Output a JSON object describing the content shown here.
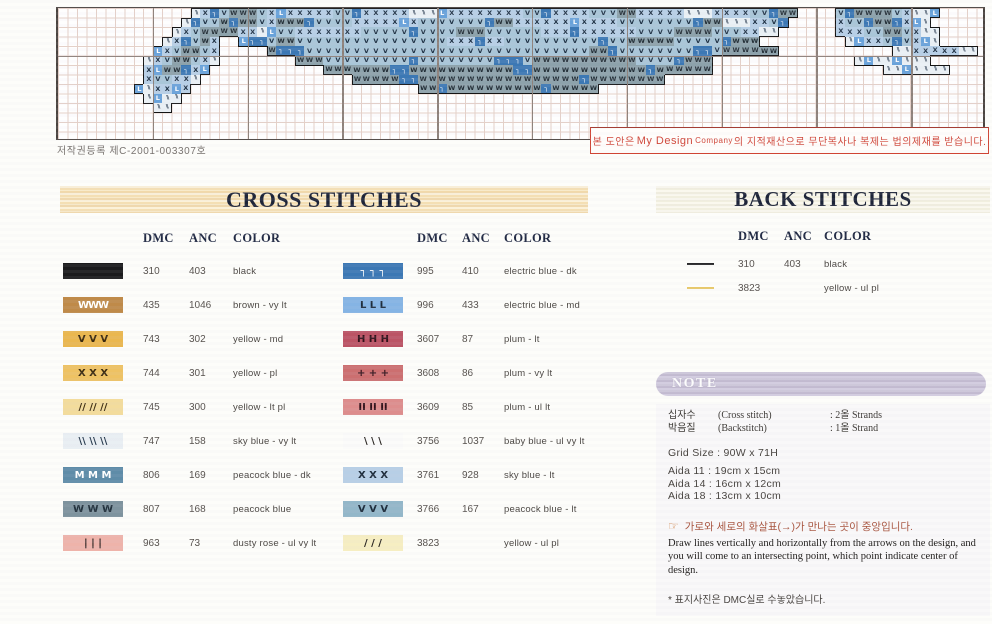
{
  "pattern": {
    "warning": {
      "pre": "본 도안은 ",
      "brand": "My Design",
      "small": "Company",
      "post": "의 지적재산으로 무단복사나 복제는 법의제재를 받습니다."
    },
    "copyright_registration": "저작권등록 제C-2001-003307호",
    "cell_types": {
      "a": {
        "bg": "#eaf0f5",
        "fg": "#2a3c50",
        "sym": "\\\\",
        "pair": true
      },
      "x": {
        "bg": "#b7cfe6",
        "fg": "#1d2f42",
        "sym": "X",
        "pair": false
      },
      "v": {
        "bg": "#a9c6d8",
        "fg": "#1d2f42",
        "sym": "V",
        "pair": false
      },
      "w": {
        "bg": "#8da2ab",
        "fg": "#232e36",
        "sym": "W",
        "pair": false
      },
      "n": {
        "bg": "#3c78b4",
        "fg": "#ffffff",
        "sym": "┐",
        "pair": false
      },
      "l": {
        "bg": "#68a2da",
        "fg": "#ffffff",
        "sym": "L",
        "pair": false
      }
    },
    "rows": [
      "..............axnvwwwvxlxxxxxvvnxxxxxaaalxxxxxxxxvvnxxxxvvvwwxxxxxaaaxxxxvvnww....vnwwwwvxaal",
      ".............anvvwnwwvxwwwnvvvvxxxxxlxvvvvvvvnwwxxxxxxlxxxxvvvvvvvvnwwaaaxxvn.....xvvnwwnxla",
      "............axvwwwwxxalvvxxxxxxxvvvvvnvvvvwwwvvvvvvxxxnxxxxxxvvvvwwwwvvvxxaa......xxxvvwwvxaa",
      "...........axnvwx..lnnvwwvvvvvvvvvvvvvvvvxxxnxxvvvvvvvvvvnvvwwwwwvvvvvnwww.........alxxvnvxla",
      "..........lxvwwvx.....wnnnvvvvvvvvvvvvvvvvvvvvvvvvvvvvvvwwnvvvvvvvvnnvwwwwww............aaxxxxxaa",
      ".........axvwwvxa........wwwvvvvvvvvvnvvvvvvvvnnnvwwwwwwwwwwwvvvvnwww...............alaalaaa",
      ".........xlwwnxl............wwwwwwwnnwwwwwwwwwwwnnwwwwwwwwwwwwnwwwwww..................aalaaaa",
      ".........xvvxxa................wwwwwnnwwwwwwwwwwwwwwwwwnwwwwwwww",
      "........laxxlx........................wwnwwwwwwwwwwnwwwww",
      ".........alaa",
      "..........aa",
      "",
      "",
      ""
    ]
  },
  "cross_stitches": {
    "title": "CROSS STITCHES",
    "headers": [
      "DMC",
      "ANC",
      "COLOR"
    ],
    "left_rows": [
      {
        "sym": "",
        "bg": "#1b1b1d",
        "fg": "#1b1b1d",
        "dmc": "310",
        "anc": "403",
        "color": "black"
      },
      {
        "sym": "WWW",
        "bg": "#bf8a49",
        "fg": "#ffffff",
        "dmc": "435",
        "anc": "1046",
        "color": "brown - vy lt"
      },
      {
        "sym": "V V V",
        "bg": "#eab74f",
        "fg": "#3a2a10",
        "dmc": "743",
        "anc": "302",
        "color": "yellow - md"
      },
      {
        "sym": "X X X",
        "bg": "#eec263",
        "fg": "#3a2a10",
        "dmc": "744",
        "anc": "301",
        "color": "yellow - pl"
      },
      {
        "sym": "// // //",
        "bg": "#f3dc9c",
        "fg": "#3a2a10",
        "dmc": "745",
        "anc": "300",
        "color": "yellow - lt pl"
      },
      {
        "sym": "\\\\ \\\\ \\\\",
        "bg": "#e9eff3",
        "fg": "#23364a",
        "dmc": "747",
        "anc": "158",
        "color": "sky blue - vy lt"
      },
      {
        "sym": "M M M",
        "bg": "#5e8ca8",
        "fg": "#ffffff",
        "dmc": "806",
        "anc": "169",
        "color": "peacock blue - dk"
      },
      {
        "sym": "W W W",
        "bg": "#7e939e",
        "fg": "#22313c",
        "dmc": "807",
        "anc": "168",
        "color": "peacock blue"
      },
      {
        "sym": "| | |",
        "bg": "#eeb3aa",
        "fg": "#2a2220",
        "dmc": "963",
        "anc": "73",
        "color": "dusty rose - ul vy lt"
      }
    ],
    "right_rows": [
      {
        "sym": "┐ ┐ ┐",
        "bg": "#3c78b4",
        "fg": "#ffffff",
        "dmc": "995",
        "anc": "410",
        "color": "electric blue - dk"
      },
      {
        "sym": "L L L",
        "bg": "#85b4e4",
        "fg": "#1c2b3a",
        "dmc": "996",
        "anc": "433",
        "color": "electric blue - md"
      },
      {
        "sym": "H H H",
        "bg": "#bb5465",
        "fg": "#30121a",
        "dmc": "3607",
        "anc": "87",
        "color": "plum - lt"
      },
      {
        "sym": "+ + +",
        "bg": "#cc6f70",
        "fg": "#30121a",
        "dmc": "3608",
        "anc": "86",
        "color": "plum - vy lt"
      },
      {
        "sym": "II II II",
        "bg": "#dd8d8d",
        "fg": "#30121a",
        "dmc": "3609",
        "anc": "85",
        "color": "plum - ul lt"
      },
      {
        "sym": "\\ \\ \\",
        "bg": "#fbfbfa",
        "fg": "#26221e",
        "dmc": "3756",
        "anc": "1037",
        "color": "baby blue - ul vy lt"
      },
      {
        "sym": "X X X",
        "bg": "#b7cfe6",
        "fg": "#1c2b3a",
        "dmc": "3761",
        "anc": "928",
        "color": "sky blue - lt"
      },
      {
        "sym": "V V V",
        "bg": "#93b7c9",
        "fg": "#1c2b3a",
        "dmc": "3766",
        "anc": "167",
        "color": "peacock blue - lt"
      },
      {
        "sym": "/ / /",
        "bg": "#f6eec2",
        "fg": "#26221e",
        "dmc": "3823",
        "anc": "",
        "color": "yellow - ul pl"
      }
    ]
  },
  "back_stitches": {
    "title": "BACK STITCHES",
    "headers": [
      "DMC",
      "ANC",
      "COLOR"
    ],
    "rows": [
      {
        "line": "#2a2a2c",
        "dmc": "310",
        "anc": "403",
        "color": "black"
      },
      {
        "line": "#e8c96a",
        "dmc": "3823",
        "anc": "",
        "color": "yellow - ul pl"
      }
    ]
  },
  "note": {
    "title": "NOTE",
    "strands": [
      {
        "kr": "십자수",
        "en": "(Cross stitch)",
        "value": ": 2올  Strands"
      },
      {
        "kr": "박음질",
        "en": "(Backstitch)",
        "value": ": 1올  Strand"
      }
    ],
    "grid_size": "Grid Size : 90W x 71H",
    "aida": [
      "Aida 11 : 19cm x 15cm",
      "Aida 14 : 16cm x  12cm",
      "Aida 18 : 13cm x  10cm"
    ],
    "hand_icon": "☞",
    "center_kr": "가로와 세로의 화살표(→)가 만나는 곳이 중앙입니다.",
    "center_en": "Draw lines vertically and horizontally from the arrows on the design, and you will come to an intersecting point, which point indicate center of design.",
    "cover_note": "* 표지사진은  DMC실로 수놓았습니다."
  }
}
